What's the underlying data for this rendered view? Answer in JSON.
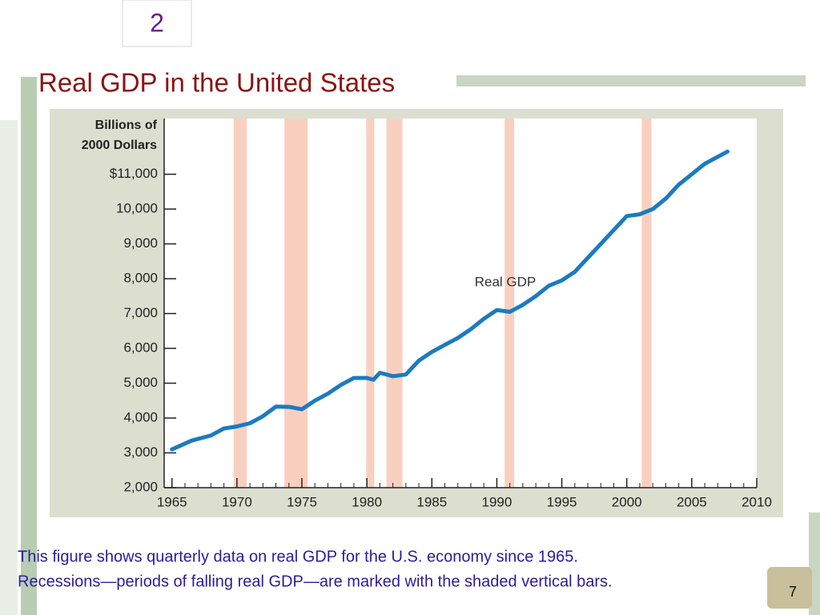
{
  "slide_number": "2",
  "title": "Real GDP in the United States",
  "caption": [
    "This figure shows quarterly data on real GDP for the U.S. economy since 1965.",
    "Recessions—periods of falling real GDP—are marked with the shaded vertical bars."
  ],
  "page_number": "7",
  "chart_data": {
    "type": "line",
    "ylabel": [
      "Billions of",
      "2000 Dollars"
    ],
    "x": [
      1965,
      1966.5,
      1967,
      1968,
      1969,
      1970,
      1971,
      1972,
      1973,
      1974,
      1975,
      1976,
      1977,
      1978,
      1979,
      1980,
      1980.5,
      1981,
      1982,
      1983,
      1984,
      1985,
      1986,
      1987,
      1988,
      1989,
      1990,
      1991,
      1992,
      1993,
      1994,
      1995,
      1996,
      1997,
      1998,
      1999,
      2000,
      2001,
      2002,
      2003,
      2004,
      2005,
      2006,
      2007,
      2007.75
    ],
    "series": [
      {
        "name": "Real GDP",
        "color": "#1b7bc0",
        "values": [
          3100,
          3350,
          3400,
          3500,
          3700,
          3760,
          3850,
          4050,
          4330,
          4320,
          4250,
          4500,
          4700,
          4950,
          5150,
          5150,
          5100,
          5300,
          5200,
          5250,
          5650,
          5900,
          6100,
          6300,
          6550,
          6850,
          7100,
          7050,
          7250,
          7500,
          7800,
          7950,
          8200,
          8600,
          9000,
          9400,
          9800,
          9850,
          10000,
          10300,
          10700,
          11000,
          11300,
          11500,
          11650
        ]
      }
    ],
    "recessions": [
      [
        1969.75,
        1970.75
      ],
      [
        1973.65,
        1975.45
      ],
      [
        1979.95,
        1980.57
      ],
      [
        1981.5,
        1982.74
      ],
      [
        1990.6,
        1991.33
      ],
      [
        2001.15,
        2001.9
      ]
    ],
    "recession_color": "#f9d0c0",
    "xlim": [
      1964.4,
      2010
    ],
    "ylim": [
      2000,
      12600
    ],
    "xticks": [
      1965,
      1970,
      1975,
      1980,
      1985,
      1990,
      1995,
      2000,
      2005,
      2010
    ],
    "yticks": [
      {
        "value": 2000,
        "label": "2,000"
      },
      {
        "value": 3000,
        "label": "3,000"
      },
      {
        "value": 4000,
        "label": "4,000"
      },
      {
        "value": 5000,
        "label": "5,000"
      },
      {
        "value": 6000,
        "label": "6,000"
      },
      {
        "value": 7000,
        "label": "7,000"
      },
      {
        "value": 8000,
        "label": "8,000"
      },
      {
        "value": 9000,
        "label": "9,000"
      },
      {
        "value": 10000,
        "label": "10,000"
      },
      {
        "value": 11000,
        "label": "$11,000"
      }
    ]
  }
}
